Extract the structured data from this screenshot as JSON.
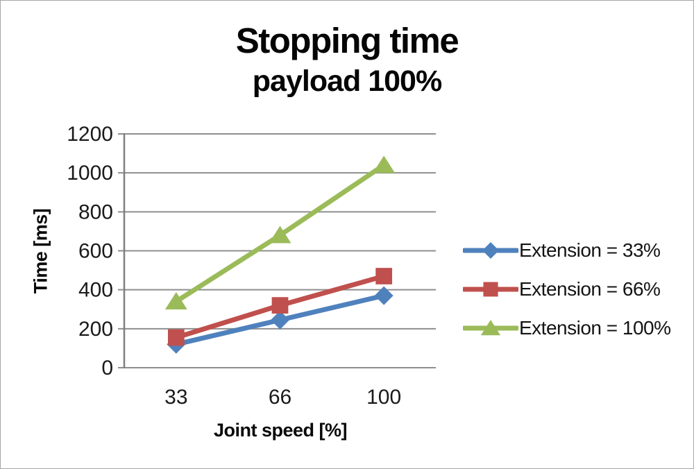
{
  "chart_data": {
    "type": "line",
    "title": "Stopping time",
    "subtitle": "payload 100%",
    "xlabel": "Joint speed [%]",
    "ylabel": "Time [ms]",
    "categories": [
      "33",
      "66",
      "100"
    ],
    "series": [
      {
        "name": "Extension = 33%",
        "marker": "diamond",
        "color": "#4F81BD",
        "values": [
          120,
          245,
          370
        ]
      },
      {
        "name": "Extension = 66%",
        "marker": "square",
        "color": "#C0504D",
        "values": [
          155,
          320,
          470
        ]
      },
      {
        "name": "Extension = 100%",
        "marker": "triangle",
        "color": "#9BBB59",
        "values": [
          340,
          680,
          1040
        ]
      }
    ],
    "ylim": [
      0,
      1200
    ],
    "ytick_step": 200,
    "grid": true,
    "legend_position": "right",
    "gridline_color": "#8e8e8e",
    "axis_color": "#7f7f7f",
    "tick_label_color": "#1a1a1a"
  }
}
